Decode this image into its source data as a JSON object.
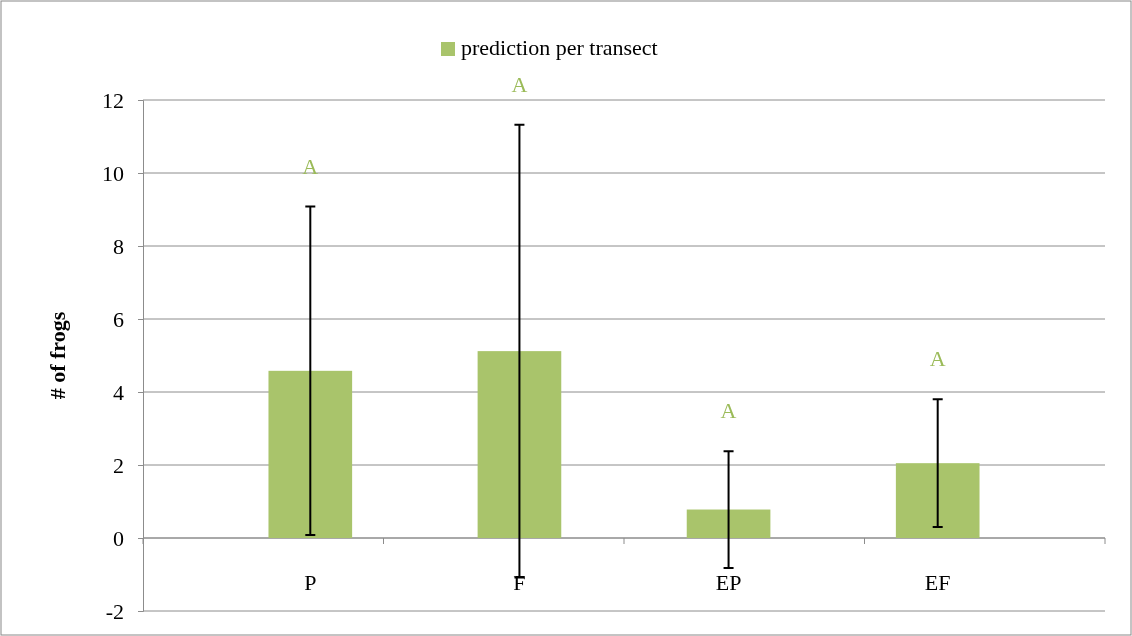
{
  "chart_data": {
    "type": "bar",
    "ylabel": "# of frogs",
    "categories": [
      "P",
      "F",
      "EP",
      "EF"
    ],
    "series": [
      {
        "name": "prediction per transect",
        "color": "#a9c46b",
        "values": [
          4.58,
          5.12,
          0.78,
          2.05
        ],
        "errors": [
          4.5,
          6.2,
          1.6,
          1.75
        ]
      }
    ],
    "ylim": [
      -2,
      12
    ],
    "yticks": [
      -2,
      0,
      2,
      4,
      6,
      8,
      10,
      12
    ],
    "grid": "y",
    "legend": "top",
    "annotations": [
      "A",
      "A",
      "A",
      "A"
    ]
  }
}
